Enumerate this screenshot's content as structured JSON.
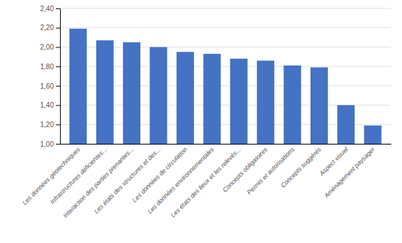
{
  "chart_data": {
    "type": "bar",
    "categories": [
      "Les données géotechniques",
      "Infrastructures déficientes...",
      "Interaction des parties prenantes...",
      "Les états des structures et des...",
      "Les données de circulation",
      "Les données environnementales",
      "Les états des lieux et les relevés...",
      "Concepts obligatoires",
      "Permis et autorisations",
      "Concepts suggérés",
      "Aspect visuel",
      "Aménagement paysager"
    ],
    "values": [
      2.19,
      2.07,
      2.05,
      2.0,
      1.95,
      1.93,
      1.88,
      1.86,
      1.81,
      1.79,
      1.4,
      1.19
    ],
    "color": "#4472C4",
    "ylim": [
      1.0,
      2.4
    ],
    "yticks": [
      {
        "value": 1.0,
        "label": "1,00"
      },
      {
        "value": 1.2,
        "label": "1,20"
      },
      {
        "value": 1.4,
        "label": "1,40"
      },
      {
        "value": 1.6,
        "label": "1,60"
      },
      {
        "value": 1.8,
        "label": "1,80"
      },
      {
        "value": 2.0,
        "label": "2,00"
      },
      {
        "value": 2.2,
        "label": "2,20"
      },
      {
        "value": 2.4,
        "label": "2,40"
      }
    ],
    "grid": true
  }
}
